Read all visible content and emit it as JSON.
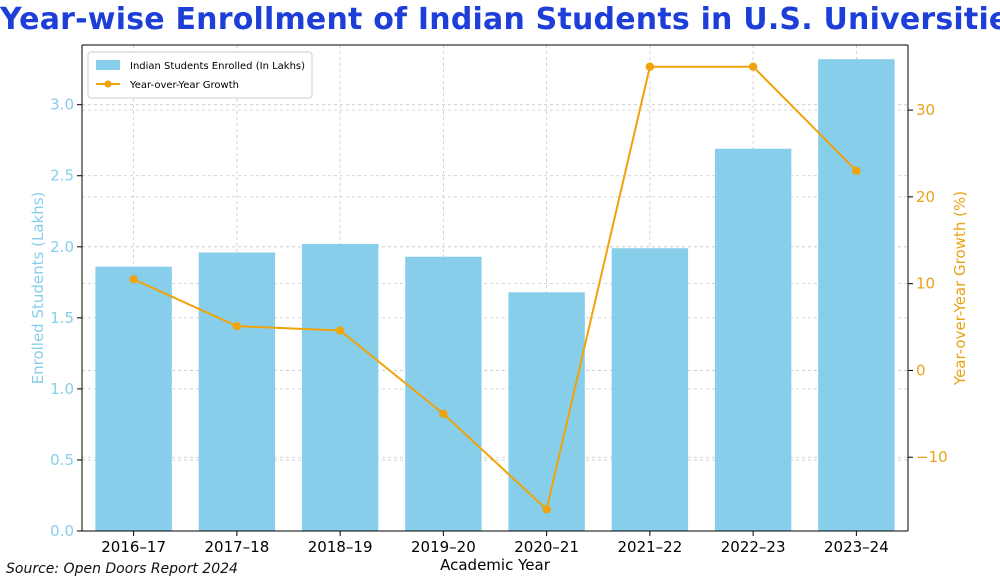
{
  "title": "Year-wise Enrollment of Indian Students in U.S. Universities",
  "source": "Source: Open Doors Report 2024",
  "colors": {
    "title": "#1d3fd8",
    "bar": "#87ceeb",
    "line": "#f0a30a",
    "left_axis": "#87ceeb",
    "right_axis": "#e8a317",
    "grid": "#c8c8c8"
  },
  "chart_data": {
    "type": "bar",
    "categories": [
      "2016–17",
      "2017–18",
      "2018–19",
      "2019–20",
      "2020–21",
      "2021–22",
      "2022–23",
      "2023–24"
    ],
    "series": [
      {
        "name": "Indian Students Enrolled (In Lakhs)",
        "type": "bar",
        "axis": "left",
        "values": [
          1.86,
          1.96,
          2.02,
          1.93,
          1.68,
          1.99,
          2.69,
          3.32
        ]
      },
      {
        "name": "Year-over-Year Growth",
        "type": "line",
        "axis": "right",
        "values": [
          10.5,
          5.1,
          4.6,
          -5.0,
          -16.0,
          35.0,
          35.0,
          23.0
        ]
      }
    ],
    "xlabel": "Academic Year",
    "ylabel": "Enrolled Students (Lakhs)",
    "y2label": "Year-over-Year Growth (%)",
    "ylim": [
      0,
      3.42
    ],
    "yticks": [
      "0.0",
      "0.5",
      "1.0",
      "1.5",
      "2.0",
      "2.5",
      "3.0"
    ],
    "y2lim": [
      -18.5,
      37.5
    ],
    "y2ticks": [
      "−10",
      "0",
      "10",
      "20",
      "30"
    ],
    "grid": true,
    "legend_position": "top-left"
  }
}
